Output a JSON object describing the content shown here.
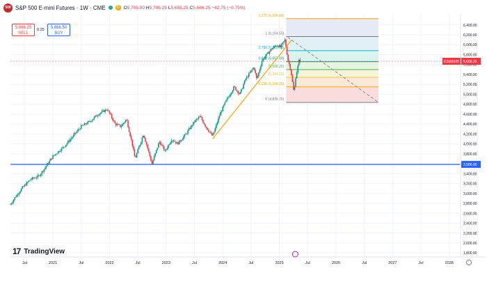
{
  "header": {
    "logo_text": "500",
    "symbol_title": "S&P 500 E-mini Futures · 1W · CME",
    "badge_letter": "D",
    "ohlc": {
      "o_label": "O",
      "o": "5,705.00",
      "h_label": "H",
      "h": "5,706.25",
      "l_label": "L",
      "l": "5,655.25",
      "c_label": "C",
      "c": "5,666.25",
      "change": "−42.75 (−0.75%)"
    }
  },
  "trade_panel": {
    "sell_price": "5,666.25",
    "sell_label": "SELL",
    "spread": "0.25",
    "buy_price": "5,666.50",
    "buy_label": "BUY"
  },
  "branding": {
    "name": "TradingView"
  },
  "colors": {
    "up": "#089981",
    "down": "#f23645",
    "support_line": "#2962ff",
    "trend_line": "#f7a600",
    "accent": "#2962ff"
  },
  "chart_data": {
    "type": "candlestick",
    "timeframe": "1W",
    "ylim": [
      1800,
      6400
    ],
    "y_ticks": [
      "6,400.00",
      "6,200.00",
      "6,000.00",
      "5,800.00",
      "5,600.00",
      "5,400.00",
      "5,200.00",
      "5,000.00",
      "4,800.00",
      "4,600.00",
      "4,400.00",
      "4,200.00",
      "4,000.00",
      "3,800.00",
      "3,600.00",
      "3,400.00",
      "3,200.00",
      "3,000.00",
      "2,800.00",
      "2,600.00",
      "2,400.00",
      "2,200.00",
      "2,000.00",
      "1,800.00"
    ],
    "x_ticks": [
      {
        "label": "Jul",
        "t": 2020.5
      },
      {
        "label": "2021",
        "t": 2021.0
      },
      {
        "label": "Jul",
        "t": 2021.5
      },
      {
        "label": "2022",
        "t": 2022.0
      },
      {
        "label": "Jul",
        "t": 2022.5
      },
      {
        "label": "2023",
        "t": 2023.0
      },
      {
        "label": "Jul",
        "t": 2023.5
      },
      {
        "label": "2024",
        "t": 2024.0
      },
      {
        "label": "Jul",
        "t": 2024.5
      },
      {
        "label": "2025",
        "t": 2025.0
      },
      {
        "label": "Jul",
        "t": 2025.5
      },
      {
        "label": "2026",
        "t": 2026.0
      },
      {
        "label": "Jul",
        "t": 2026.5
      },
      {
        "label": "2027",
        "t": 2027.0
      },
      {
        "label": "Jul",
        "t": 2027.5
      },
      {
        "label": "2028",
        "t": 2028.0
      }
    ],
    "xlim": [
      2020.25,
      2028.2
    ],
    "price_anchors": [
      [
        2020.25,
        2780
      ],
      [
        2020.35,
        2950
      ],
      [
        2020.45,
        3100
      ],
      [
        2020.6,
        3280
      ],
      [
        2020.75,
        3350
      ],
      [
        2020.85,
        3500
      ],
      [
        2021.0,
        3750
      ],
      [
        2021.2,
        3950
      ],
      [
        2021.35,
        4150
      ],
      [
        2021.5,
        4350
      ],
      [
        2021.65,
        4450
      ],
      [
        2021.8,
        4600
      ],
      [
        2021.96,
        4700
      ],
      [
        2022.1,
        4400
      ],
      [
        2022.2,
        4350
      ],
      [
        2022.3,
        4500
      ],
      [
        2022.4,
        4000
      ],
      [
        2022.45,
        3700
      ],
      [
        2022.6,
        4200
      ],
      [
        2022.75,
        3600
      ],
      [
        2022.88,
        4050
      ],
      [
        2022.98,
        3850
      ],
      [
        2023.1,
        4100
      ],
      [
        2023.2,
        4000
      ],
      [
        2023.35,
        4200
      ],
      [
        2023.5,
        4450
      ],
      [
        2023.6,
        4550
      ],
      [
        2023.7,
        4350
      ],
      [
        2023.82,
        4150
      ],
      [
        2023.95,
        4600
      ],
      [
        2024.05,
        4850
      ],
      [
        2024.2,
        5150
      ],
      [
        2024.3,
        5000
      ],
      [
        2024.4,
        5300
      ],
      [
        2024.55,
        5550
      ],
      [
        2024.6,
        5300
      ],
      [
        2024.7,
        5700
      ],
      [
        2024.85,
        5900
      ],
      [
        2024.95,
        6000
      ],
      [
        2025.02,
        5950
      ],
      [
        2025.1,
        6100
      ],
      [
        2025.15,
        5700
      ],
      [
        2025.2,
        5500
      ],
      [
        2025.26,
        5000
      ],
      [
        2025.28,
        5300
      ],
      [
        2025.35,
        5700
      ],
      [
        2025.38,
        5666
      ]
    ],
    "support_line": {
      "value": 3586,
      "label": "3,586.00"
    },
    "last_price": {
      "value": 5666.25,
      "label": "5,666.25",
      "symbol": "ESM2025"
    },
    "trend_line": {
      "from": [
        2023.82,
        4100
      ],
      "to": [
        2025.22,
        6100
      ]
    },
    "projection_line": {
      "from": [
        2025.15,
        6150
      ],
      "to": [
        2026.75,
        4835.75
      ]
    },
    "fibonacci": {
      "t_start": 2025.12,
      "t_end": 2026.75,
      "levels": [
        {
          "ratio": "1.272",
          "price": 6526.0,
          "label": "1.272 (6,526.00)",
          "fill": "#f5ece1",
          "line": "#f7a600"
        },
        {
          "ratio": "1",
          "price": 6164.5,
          "label": "1 (6,164.50)",
          "fill": "#e6e9f6",
          "line": "#787b86"
        },
        {
          "ratio": "0.786",
          "price": 5880.0,
          "label": "0.786 (5,880.00)",
          "fill": "#e0f0f4",
          "line": "#00bcd4"
        },
        {
          "ratio": "0.618",
          "price": 5657.0,
          "label": "0.618 (5,657.00)",
          "fill": "#dcf2ec",
          "line": "#089981"
        },
        {
          "ratio": "0.5",
          "price": 5500.25,
          "label": "(5,500.25)",
          "fill": "#e6f4e0",
          "line": "#4caf50"
        },
        {
          "ratio": "0.382",
          "price": 5343.25,
          "label": "(5,343.25)",
          "fill": "#f7f3d8",
          "line": "#e8c94a"
        },
        {
          "ratio": "0.236",
          "price": 5149.25,
          "label": "0.236 (5,149.25)",
          "fill": "#fbe8d6",
          "line": "#f7a600"
        },
        {
          "ratio": "0",
          "price": 4835.75,
          "label": "0 (4,835.75)",
          "fill": "#fbdcdc",
          "line": "#787b86"
        }
      ]
    }
  }
}
